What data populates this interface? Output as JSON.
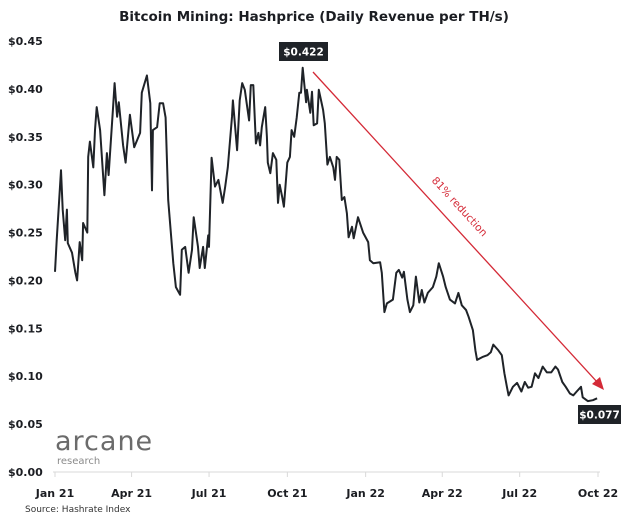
{
  "chart_data": {
    "type": "line",
    "title": "Bitcoin Mining: Hashprice (Daily Revenue per TH/s)",
    "xlabel": "",
    "ylabel": "",
    "ylim": [
      0,
      0.45
    ],
    "xlim": [
      "2021-01-01",
      "2022-10-01"
    ],
    "grid": false,
    "y_ticks": [
      "$0.00",
      "$0.05",
      "$0.10",
      "$0.15",
      "$0.20",
      "$0.25",
      "$0.30",
      "$0.35",
      "$0.40",
      "$0.45"
    ],
    "y_tick_values": [
      0,
      0.05,
      0.1,
      0.15,
      0.2,
      0.25,
      0.3,
      0.35,
      0.4,
      0.45
    ],
    "x_ticks": [
      "Jan 21",
      "Apr 21",
      "Jul 21",
      "Oct 21",
      "Jan 22",
      "Apr 22",
      "Jul 22",
      "Oct 22"
    ],
    "x_tick_dates": [
      "2021-01-01",
      "2021-04-01",
      "2021-07-01",
      "2021-10-01",
      "2022-01-01",
      "2022-04-01",
      "2022-07-01",
      "2022-10-01"
    ],
    "series": [
      {
        "color": "#1f2328",
        "x": [
          "2021-01-01",
          "2021-01-03",
          "2021-01-08",
          "2021-01-10",
          "2021-01-13",
          "2021-01-15",
          "2021-01-16",
          "2021-01-21",
          "2021-01-25",
          "2021-01-27",
          "2021-01-30",
          "2021-02-02",
          "2021-02-03",
          "2021-02-08",
          "2021-02-09",
          "2021-02-11",
          "2021-02-15",
          "2021-02-17",
          "2021-02-19",
          "2021-02-23",
          "2021-02-28",
          "2021-03-03",
          "2021-03-05",
          "2021-03-10",
          "2021-03-12",
          "2021-03-15",
          "2021-03-17",
          "2021-03-22",
          "2021-03-25",
          "2021-03-30",
          "2021-04-04",
          "2021-04-11",
          "2021-04-13",
          "2021-04-19",
          "2021-04-23",
          "2021-04-25",
          "2021-04-26",
          "2021-05-01",
          "2021-05-04",
          "2021-05-08",
          "2021-05-11",
          "2021-05-14",
          "2021-05-18",
          "2021-05-20",
          "2021-05-23",
          "2021-05-28",
          "2021-05-30",
          "2021-06-03",
          "2021-06-07",
          "2021-06-11",
          "2021-06-13",
          "2021-06-18",
          "2021-06-20",
          "2021-06-24",
          "2021-06-26",
          "2021-06-30",
          "2021-07-01",
          "2021-07-04",
          "2021-07-08",
          "2021-07-12",
          "2021-07-17",
          "2021-07-20",
          "2021-07-23",
          "2021-07-28",
          "2021-07-29",
          "2021-08-03",
          "2021-08-06",
          "2021-08-09",
          "2021-08-12",
          "2021-08-17",
          "2021-08-19",
          "2021-08-22",
          "2021-08-25",
          "2021-08-28",
          "2021-08-30",
          "2021-09-01",
          "2021-09-05",
          "2021-09-07",
          "2021-09-08",
          "2021-09-11",
          "2021-09-14",
          "2021-09-18",
          "2021-09-20",
          "2021-09-22",
          "2021-09-25",
          "2021-09-27",
          "2021-10-01",
          "2021-10-04",
          "2021-10-06",
          "2021-10-09",
          "2021-10-12",
          "2021-10-15",
          "2021-10-17",
          "2021-10-19",
          "2021-10-23",
          "2021-10-24",
          "2021-10-28",
          "2021-10-30",
          "2021-11-01",
          "2021-11-05",
          "2021-11-07",
          "2021-11-12",
          "2021-11-14",
          "2021-11-17",
          "2021-11-20",
          "2021-11-24",
          "2021-11-26",
          "2021-11-28",
          "2021-12-01",
          "2021-12-04",
          "2021-12-07",
          "2021-12-10",
          "2021-12-12",
          "2021-12-16",
          "2021-12-18",
          "2021-12-23",
          "2021-12-29",
          "2022-01-04",
          "2022-01-06",
          "2022-01-10",
          "2022-01-18",
          "2022-01-20",
          "2022-01-23",
          "2022-01-26",
          "2022-02-02",
          "2022-02-06",
          "2022-02-09",
          "2022-02-13",
          "2022-02-15",
          "2022-02-19",
          "2022-02-22",
          "2022-02-26",
          "2022-03-01",
          "2022-03-05",
          "2022-03-08",
          "2022-03-11",
          "2022-03-15",
          "2022-03-21",
          "2022-03-25",
          "2022-03-28",
          "2022-04-02",
          "2022-04-05",
          "2022-04-10",
          "2022-04-16",
          "2022-04-20",
          "2022-04-24",
          "2022-04-29",
          "2022-05-02",
          "2022-05-07",
          "2022-05-10",
          "2022-05-12",
          "2022-05-18",
          "2022-05-24",
          "2022-05-28",
          "2022-05-31",
          "2022-06-06",
          "2022-06-10",
          "2022-06-13",
          "2022-06-16",
          "2022-06-18",
          "2022-06-23",
          "2022-06-28",
          "2022-07-03",
          "2022-07-07",
          "2022-07-11",
          "2022-07-15",
          "2022-07-19",
          "2022-07-23",
          "2022-07-28",
          "2022-08-02",
          "2022-08-07",
          "2022-08-12",
          "2022-08-15",
          "2022-08-20",
          "2022-08-24",
          "2022-08-29",
          "2022-09-02",
          "2022-09-06",
          "2022-09-11",
          "2022-09-13",
          "2022-09-19",
          "2022-09-25",
          "2022-09-30"
        ],
        "y": [
          0.209,
          0.242,
          0.315,
          0.274,
          0.242,
          0.274,
          0.239,
          0.229,
          0.208,
          0.2,
          0.24,
          0.221,
          0.26,
          0.25,
          0.329,
          0.345,
          0.318,
          0.357,
          0.381,
          0.357,
          0.289,
          0.333,
          0.31,
          0.378,
          0.406,
          0.371,
          0.386,
          0.341,
          0.323,
          0.373,
          0.339,
          0.354,
          0.396,
          0.414,
          0.385,
          0.294,
          0.357,
          0.36,
          0.385,
          0.385,
          0.37,
          0.284,
          0.24,
          0.218,
          0.193,
          0.185,
          0.232,
          0.235,
          0.208,
          0.232,
          0.266,
          0.235,
          0.213,
          0.235,
          0.213,
          0.247,
          0.235,
          0.328,
          0.298,
          0.305,
          0.281,
          0.298,
          0.318,
          0.371,
          0.388,
          0.336,
          0.388,
          0.406,
          0.399,
          0.367,
          0.404,
          0.404,
          0.343,
          0.354,
          0.341,
          0.36,
          0.381,
          0.35,
          0.323,
          0.312,
          0.333,
          0.326,
          0.281,
          0.3,
          0.287,
          0.277,
          0.323,
          0.329,
          0.357,
          0.35,
          0.37,
          0.396,
          0.396,
          0.422,
          0.386,
          0.399,
          0.375,
          0.397,
          0.362,
          0.364,
          0.399,
          0.378,
          0.364,
          0.321,
          0.329,
          0.318,
          0.305,
          0.329,
          0.326,
          0.284,
          0.287,
          0.27,
          0.245,
          0.256,
          0.244,
          0.266,
          0.25,
          0.24,
          0.221,
          0.218,
          0.219,
          0.208,
          0.167,
          0.176,
          0.18,
          0.208,
          0.211,
          0.203,
          0.209,
          0.18,
          0.167,
          0.174,
          0.204,
          0.177,
          0.19,
          0.177,
          0.187,
          0.193,
          0.204,
          0.218,
          0.204,
          0.193,
          0.18,
          0.176,
          0.187,
          0.174,
          0.169,
          0.162,
          0.148,
          0.127,
          0.117,
          0.12,
          0.122,
          0.125,
          0.133,
          0.127,
          0.122,
          0.103,
          0.089,
          0.08,
          0.089,
          0.093,
          0.084,
          0.094,
          0.088,
          0.089,
          0.103,
          0.098,
          0.11,
          0.104,
          0.104,
          0.11,
          0.107,
          0.094,
          0.089,
          0.082,
          0.08,
          0.084,
          0.089,
          0.078,
          0.074,
          0.075,
          0.077
        ]
      }
    ],
    "annotations": {
      "peak_label": "$0.422",
      "last_label": "$0.077",
      "trend_label": "81% reduction",
      "trend_color": "#d42a37",
      "label_bg": "#1f2328"
    },
    "source": "Source: Hashrate Index",
    "logo": {
      "name": "arcane",
      "sub": "research"
    }
  }
}
